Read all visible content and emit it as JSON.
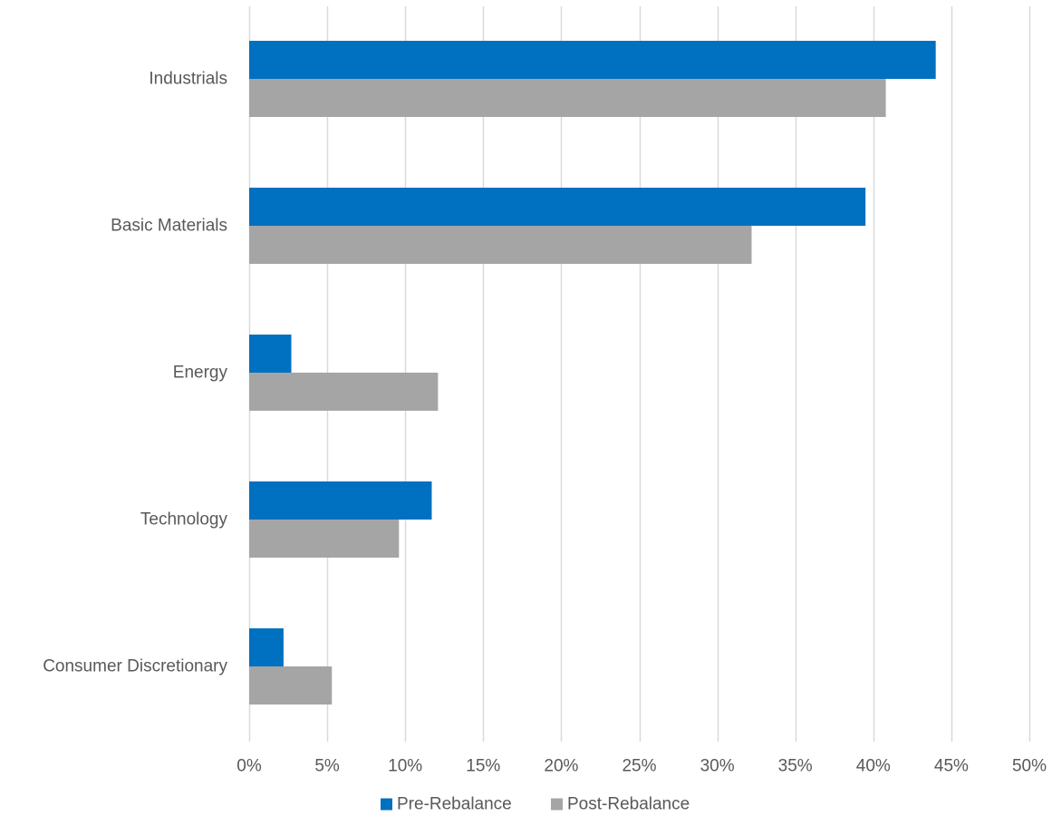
{
  "chart_data": {
    "type": "bar",
    "orientation": "horizontal",
    "categories": [
      "Industrials",
      "Basic Materials",
      "Energy",
      "Technology",
      "Consumer Discretionary"
    ],
    "series": [
      {
        "name": "Pre-Rebalance",
        "color": "#0070C0",
        "values": [
          44.0,
          39.5,
          2.7,
          11.7,
          2.2
        ]
      },
      {
        "name": "Post-Rebalance",
        "color": "#A5A5A5",
        "values": [
          40.8,
          32.2,
          12.1,
          9.6,
          5.3
        ]
      }
    ],
    "xlim": [
      0,
      50
    ],
    "xticks": [
      0,
      5,
      10,
      15,
      20,
      25,
      30,
      35,
      40,
      45,
      50
    ],
    "xtick_labels": [
      "0%",
      "5%",
      "10%",
      "15%",
      "20%",
      "25%",
      "30%",
      "35%",
      "40%",
      "45%",
      "50%"
    ],
    "title": "",
    "xlabel": "",
    "ylabel": "",
    "grid": "vertical",
    "legend_position": "bottom",
    "gridline_color": "#D9D9D9"
  }
}
